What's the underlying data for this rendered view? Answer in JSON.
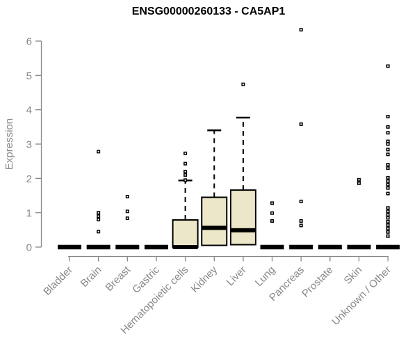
{
  "chart_data": {
    "type": "boxplot",
    "title": "ENSG00000260133 - CA5AP1",
    "ylabel": "Expression",
    "xlabel": "",
    "ylim": [
      0,
      6
    ],
    "yticks": [
      0,
      1,
      2,
      3,
      4,
      5,
      6
    ],
    "grid": false,
    "legend": "none",
    "box_fill": "#ede7c9",
    "box_stroke": "#000000",
    "axis_color": "#878787",
    "categories": [
      {
        "label": "Bladder",
        "q1": 0,
        "median": 0,
        "q3": 0,
        "whisker_low": 0,
        "whisker_high": 0,
        "outliers": []
      },
      {
        "label": "Brain",
        "q1": 0,
        "median": 0,
        "q3": 0,
        "whisker_low": 0,
        "whisker_high": 0,
        "outliers": [
          2.78,
          1.0,
          0.9,
          0.8,
          0.45
        ]
      },
      {
        "label": "Breast",
        "q1": 0,
        "median": 0,
        "q3": 0,
        "whisker_low": 0,
        "whisker_high": 0,
        "outliers": [
          1.47,
          1.04,
          0.84
        ]
      },
      {
        "label": "Gastric",
        "q1": 0,
        "median": 0,
        "q3": 0,
        "whisker_low": 0,
        "whisker_high": 0,
        "outliers": []
      },
      {
        "label": "Hematopoietic cells",
        "q1": 0,
        "median": 0,
        "q3": 0.79,
        "whisker_low": 0,
        "whisker_high": 1.94,
        "outliers": [
          2.73,
          2.43,
          2.2,
          2.1,
          1.95
        ]
      },
      {
        "label": "Kidney",
        "q1": 0.05,
        "median": 0.56,
        "q3": 1.45,
        "whisker_low": 0.05,
        "whisker_high": 3.4,
        "outliers": []
      },
      {
        "label": "Liver",
        "q1": 0.07,
        "median": 0.49,
        "q3": 1.66,
        "whisker_low": 0.07,
        "whisker_high": 3.77,
        "outliers": [
          4.74
        ]
      },
      {
        "label": "Lung",
        "q1": 0,
        "median": 0,
        "q3": 0,
        "whisker_low": 0,
        "whisker_high": 0,
        "outliers": [
          1.28,
          0.99,
          0.76
        ]
      },
      {
        "label": "Pancreas",
        "q1": 0,
        "median": 0,
        "q3": 0,
        "whisker_low": 0,
        "whisker_high": 0,
        "outliers": [
          6.33,
          3.58,
          1.33,
          0.76,
          0.63
        ]
      },
      {
        "label": "Prostate",
        "q1": 0,
        "median": 0,
        "q3": 0,
        "whisker_low": 0,
        "whisker_high": 0,
        "outliers": []
      },
      {
        "label": "Skin",
        "q1": 0,
        "median": 0,
        "q3": 0,
        "whisker_low": 0,
        "whisker_high": 0,
        "outliers": [
          1.96,
          1.86
        ]
      },
      {
        "label": "Unknown / Other",
        "q1": 0,
        "median": 0,
        "q3": 0,
        "whisker_low": 0,
        "whisker_high": 0,
        "outliers": [
          5.27,
          3.8,
          3.5,
          3.33,
          3.08,
          3.0,
          2.84,
          2.7,
          2.4,
          2.3,
          2.02,
          1.92,
          1.82,
          1.72,
          1.56,
          1.14,
          1.04,
          0.94,
          0.85,
          0.74,
          0.64,
          0.54,
          0.44,
          0.32
        ]
      }
    ]
  }
}
